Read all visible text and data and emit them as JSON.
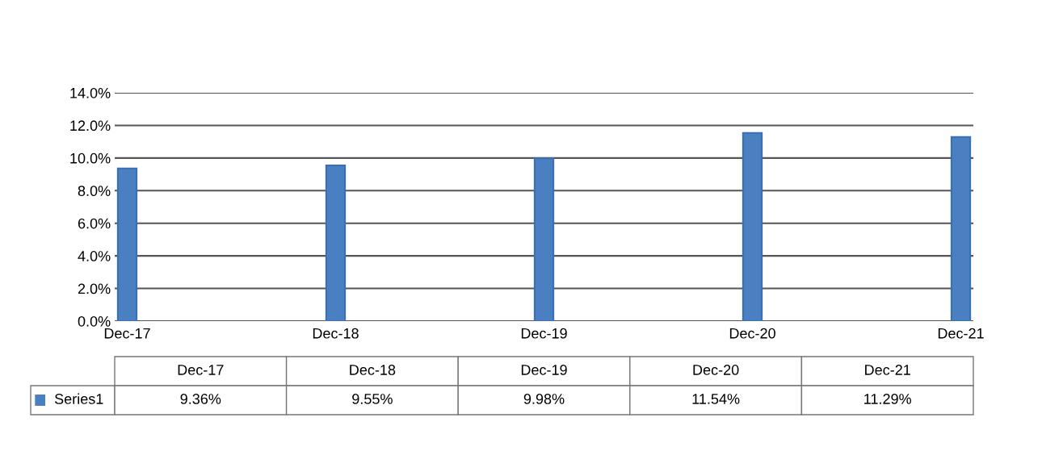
{
  "chart_data": {
    "type": "bar",
    "categories": [
      "Dec-17",
      "Dec-18",
      "Dec-19",
      "Dec-20",
      "Dec-21"
    ],
    "series": [
      {
        "name": "Series1",
        "color": "#4a7fc1",
        "values": [
          9.36,
          9.55,
          9.98,
          11.54,
          11.29
        ],
        "value_labels": [
          "9.36%",
          "9.55%",
          "9.98%",
          "11.54%",
          "11.29%"
        ]
      }
    ],
    "ylim": [
      0,
      14
    ],
    "yticks": [
      {
        "value": 0,
        "label": "0.0%"
      },
      {
        "value": 2,
        "label": "2.0%"
      },
      {
        "value": 4,
        "label": "4.0%"
      },
      {
        "value": 6,
        "label": "6.0%"
      },
      {
        "value": 8,
        "label": "8.0%"
      },
      {
        "value": 10,
        "label": "10.0%"
      },
      {
        "value": 12,
        "label": "12.0%"
      },
      {
        "value": 14,
        "label": "14.0%"
      }
    ],
    "grid": "y"
  }
}
